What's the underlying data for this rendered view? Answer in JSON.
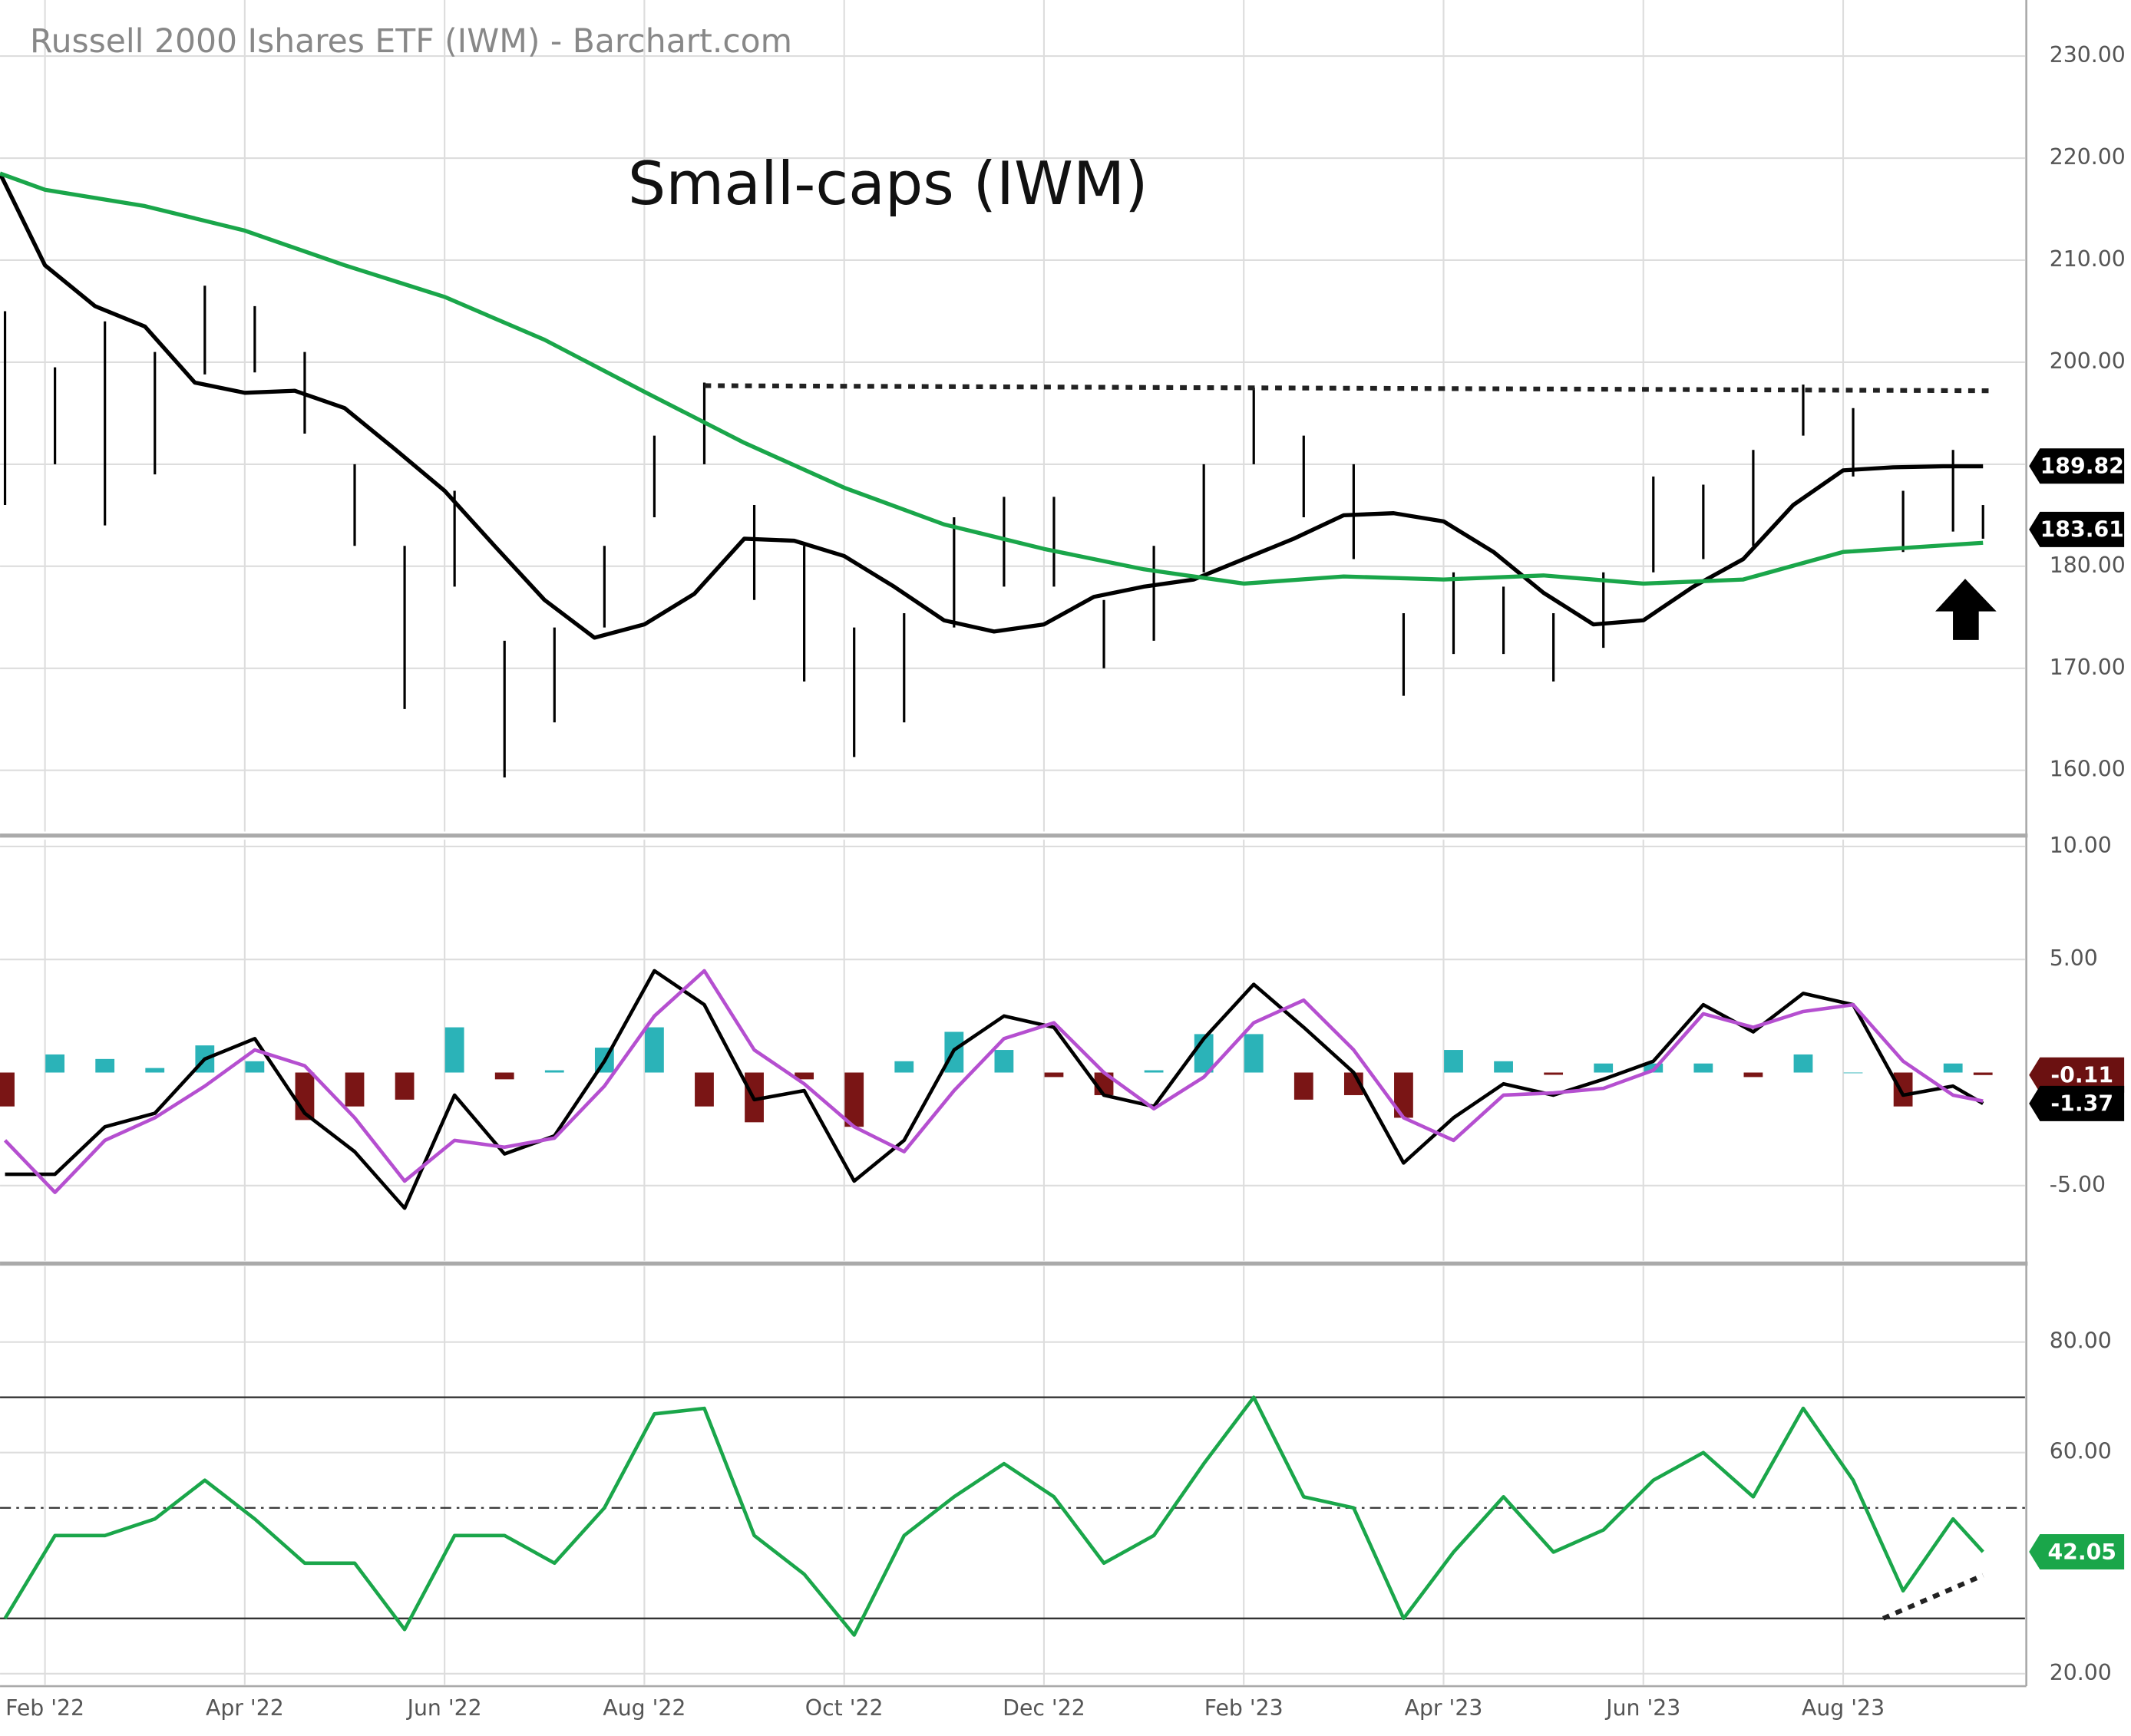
{
  "header": "Russell 2000 Ishares ETF (IWM) - Barchart.com",
  "chart_data": [
    {
      "type": "ohlc",
      "title": "Small-caps (IWM)",
      "x": [
        0.6,
        1.1,
        1.6,
        2.1,
        2.6,
        3.1,
        3.6,
        4.1,
        4.6,
        5.1,
        5.6,
        6.1,
        6.6,
        7.1,
        7.6,
        8.1,
        8.6,
        9.1,
        9.6,
        10.1,
        10.6,
        11.1,
        11.6,
        12.1,
        12.6,
        13.1,
        13.6,
        14.1,
        14.6,
        15.1,
        15.6,
        16.1,
        16.6,
        17.1,
        17.6,
        18.1,
        18.6,
        19.1,
        19.6,
        20.1,
        20.4
      ],
      "high": [
        205,
        199.5,
        204,
        201,
        207.5,
        205.5,
        201,
        190,
        182,
        187.4,
        172.7,
        174,
        182,
        192.8,
        198,
        186,
        182,
        174,
        175.4,
        184.8,
        186.8,
        186.8,
        176.7,
        182,
        190,
        197.5,
        192.8,
        190,
        175.4,
        179.4,
        178,
        175.4,
        179.4,
        188.8,
        188,
        191.4,
        197.8,
        195.5,
        187.4,
        191.4,
        186
      ],
      "low": [
        186,
        190,
        184,
        189,
        198.8,
        199,
        193,
        182,
        166,
        178,
        159.3,
        164.7,
        174,
        184.8,
        190,
        176.7,
        168.7,
        161.3,
        164.7,
        174,
        178,
        178,
        170,
        172.7,
        179.4,
        190,
        184.8,
        180.7,
        167.3,
        171.4,
        171.4,
        168.7,
        172,
        179.4,
        180.7,
        182,
        192.8,
        188.8,
        181.4,
        183.4,
        182.7
      ],
      "color": "#000000",
      "series": [
        {
          "color": "#000000",
          "x": [
            0.55,
            1,
            1.5,
            2,
            2.5,
            3,
            3.5,
            4,
            4.5,
            5,
            5.5,
            6,
            6.5,
            7,
            7.5,
            8,
            8.5,
            9,
            9.5,
            10,
            10.5,
            11,
            11.5,
            12,
            12.5,
            13,
            13.5,
            14,
            14.5,
            15,
            15.5,
            16,
            16.5,
            17,
            17.5,
            18,
            18.5,
            19,
            19.5,
            20,
            20.4
          ],
          "values": [
            218.5,
            209.5,
            205.5,
            203.5,
            198,
            197,
            197.2,
            195.5,
            191.5,
            187.4,
            182,
            176.7,
            173,
            174.3,
            177.3,
            182.7,
            182.5,
            181,
            178,
            174.7,
            173.6,
            174.3,
            177,
            178,
            178.7,
            180.7,
            182.7,
            185,
            185.2,
            184.4,
            181.4,
            177.4,
            174.3,
            174.7,
            178,
            180.7,
            186,
            189.4,
            189.7,
            189.8,
            189.8
          ]
        },
        {
          "color": "#1aa64a",
          "x": [
            0.55,
            1,
            2,
            3,
            4,
            5,
            6,
            7,
            8,
            9,
            10,
            11,
            12,
            13,
            14,
            15,
            16,
            17,
            18,
            19,
            20.4
          ],
          "values": [
            218.5,
            216.9,
            215.3,
            212.9,
            209.5,
            206.4,
            202.2,
            197.1,
            192.1,
            187.7,
            184.1,
            181.7,
            179.7,
            178.3,
            179,
            178.7,
            179.1,
            178.3,
            178.7,
            181.4,
            182.3
          ]
        }
      ],
      "trendline": {
        "x": [
          7.6,
          20.5
        ],
        "values": [
          197.7,
          197.2
        ],
        "color": "#222222"
      },
      "markers": [
        {
          "value": 189.82,
          "color": "#000000"
        },
        {
          "value": 183.61,
          "color": "#000000"
        }
      ],
      "ylim": [
        154,
        235.5
      ],
      "yticks": [
        {
          "value": 160,
          "label": "160.00"
        },
        {
          "value": 170,
          "label": "170.00"
        },
        {
          "value": 180,
          "label": "180.00"
        },
        {
          "value": 190,
          "label": "190.00"
        },
        {
          "value": 200,
          "label": "200.00"
        },
        {
          "value": 210,
          "label": "210.00"
        },
        {
          "value": 220,
          "label": "220.00"
        },
        {
          "value": 230,
          "label": "230.00"
        }
      ],
      "grid": true
    },
    {
      "type": "macd",
      "x": [
        0.6,
        1.1,
        1.6,
        2.1,
        2.6,
        3.1,
        3.6,
        4.1,
        4.6,
        5.1,
        5.6,
        6.1,
        6.6,
        7.1,
        7.6,
        8.1,
        8.6,
        9.1,
        9.6,
        10.1,
        10.6,
        11.1,
        11.6,
        12.1,
        12.6,
        13.1,
        13.6,
        14.1,
        14.6,
        15.1,
        15.6,
        16.1,
        16.6,
        17.1,
        17.6,
        18.1,
        18.6,
        19.1,
        19.6,
        20.1,
        20.4
      ],
      "series": [
        {
          "color": "#000000",
          "values": [
            -4.5,
            -4.5,
            -2.4,
            -1.8,
            0.6,
            1.5,
            -1.8,
            -3.5,
            -6.0,
            -1.0,
            -3.6,
            -2.8,
            0.5,
            4.5,
            3.0,
            -1.2,
            -0.8,
            -4.8,
            -3.0,
            1.0,
            2.5,
            2.0,
            -1.0,
            -1.5,
            1.5,
            3.9,
            2.0,
            0.0,
            -4.0,
            -2.0,
            -0.5,
            -1.0,
            -0.3,
            0.5,
            3.0,
            1.8,
            3.5,
            3.0,
            -1.0,
            -0.6,
            -1.37
          ]
        },
        {
          "color": "#b54fd0",
          "values": [
            -3.0,
            -5.3,
            -3.0,
            -2.0,
            -0.6,
            1.0,
            0.3,
            -2.0,
            -4.8,
            -3.0,
            -3.3,
            -2.9,
            -0.6,
            2.5,
            4.5,
            1.0,
            -0.5,
            -2.4,
            -3.5,
            -0.8,
            1.5,
            2.2,
            0.0,
            -1.6,
            -0.2,
            2.2,
            3.2,
            1.0,
            -2.0,
            -3.0,
            -1.0,
            -0.9,
            -0.7,
            0.1,
            2.6,
            2.0,
            2.7,
            3.0,
            0.5,
            -1.0,
            -1.26
          ]
        }
      ],
      "histogram": {
        "values": [
          -1.5,
          0.8,
          0.6,
          0.2,
          1.2,
          0.5,
          -2.1,
          -1.5,
          -1.2,
          2.0,
          -0.3,
          0.1,
          1.1,
          2.0,
          -1.5,
          -2.2,
          -0.3,
          -2.4,
          0.5,
          1.8,
          1.0,
          -0.2,
          -1.0,
          0.1,
          1.7,
          1.7,
          -1.2,
          -1.0,
          -2.0,
          1.0,
          0.5,
          -0.1,
          0.4,
          0.4,
          0.4,
          -0.2,
          0.8,
          0.0,
          -1.5,
          0.4,
          -0.11
        ],
        "colors": [
          "#2bb3b8",
          "#7a1515"
        ]
      },
      "markers": [
        {
          "value": -0.11,
          "color": "#6b1111"
        },
        {
          "value": -1.37,
          "color": "#000000"
        }
      ],
      "ylim": [
        -8.33,
        10.3
      ],
      "yticks": [
        {
          "value": 10,
          "label": "10.00"
        },
        {
          "value": 5,
          "label": "5.00"
        },
        {
          "value": -5,
          "label": "-5.00"
        }
      ],
      "grid": true
    },
    {
      "type": "rsi",
      "x": [
        0.6,
        1.1,
        1.6,
        2.1,
        2.6,
        3.1,
        3.6,
        4.1,
        4.6,
        5.1,
        5.6,
        6.1,
        6.6,
        7.1,
        7.6,
        8.1,
        8.6,
        9.1,
        9.6,
        10.1,
        10.6,
        11.1,
        11.6,
        12.1,
        12.6,
        13.1,
        13.6,
        14.1,
        14.6,
        15.1,
        15.6,
        16.1,
        16.6,
        17.1,
        17.6,
        18.1,
        18.6,
        19.1,
        19.6,
        20.1,
        20.4
      ],
      "series": [
        {
          "color": "#1aa64a",
          "values": [
            30,
            45,
            45,
            48,
            55,
            48,
            40,
            40,
            28,
            45,
            45,
            40,
            50,
            67,
            68,
            45,
            38,
            27,
            45,
            52,
            58,
            52,
            40,
            45,
            58,
            70,
            52,
            50,
            30,
            42,
            52,
            42,
            46,
            55,
            60,
            52,
            68,
            55,
            35,
            48,
            42.05
          ]
        }
      ],
      "levels": [
        70,
        50,
        30
      ],
      "trendline": {
        "x": [
          19.4,
          20.4
        ],
        "values": [
          30,
          37.8
        ],
        "color": "#222222"
      },
      "markers": [
        {
          "value": 42.05,
          "color": "#1aa64a"
        }
      ],
      "ylim": [
        18,
        93.7
      ],
      "yticks": [
        {
          "value": 20,
          "label": "20.00"
        },
        {
          "value": 60,
          "label": "60.00"
        },
        {
          "value": 80,
          "label": "80.00"
        }
      ],
      "xlim": [
        0.55,
        20.82
      ],
      "xticks": [
        {
          "value": 1,
          "label": "Feb '22"
        },
        {
          "value": 3,
          "label": "Apr '22"
        },
        {
          "value": 5,
          "label": "Jun '22"
        },
        {
          "value": 7,
          "label": "Aug '22"
        },
        {
          "value": 9,
          "label": "Oct '22"
        },
        {
          "value": 11,
          "label": "Dec '22"
        },
        {
          "value": 13,
          "label": "Feb '23"
        },
        {
          "value": 15,
          "label": "Apr '23"
        },
        {
          "value": 17,
          "label": "Jun '23"
        },
        {
          "value": 19,
          "label": "Aug '23"
        }
      ],
      "grid": true
    }
  ]
}
